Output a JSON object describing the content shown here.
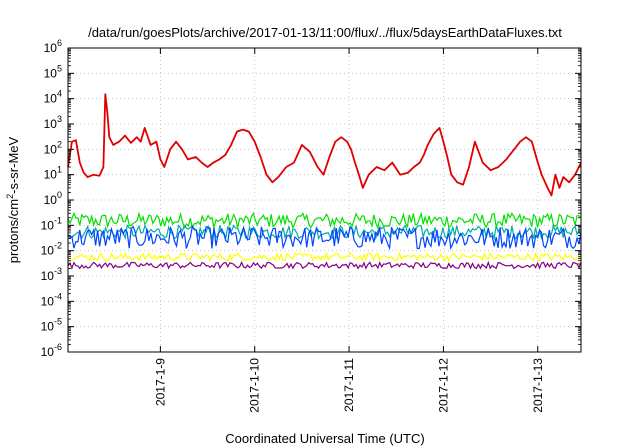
{
  "chart_data": {
    "type": "line",
    "title": "/data/run/goesPlots/archive/2017-01-13/11:00/flux/../flux/5daysEarthDataFluxes.txt",
    "xlabel": "Coordinated Universal Time (UTC)",
    "ylabel": {
      "base": "protons/cm",
      "sup": "2",
      "rest": "-s-sr-MeV"
    },
    "yscale": "log",
    "ylim": [
      1e-06,
      1000000
    ],
    "xlim": [
      "2017-01-08T00:30",
      "2017-01-13T11:00"
    ],
    "yticks": [
      {
        "value": 1e-06,
        "base": "10",
        "exp": "-6"
      },
      {
        "value": 1e-05,
        "base": "10",
        "exp": "-5"
      },
      {
        "value": 0.0001,
        "base": "10",
        "exp": "-4"
      },
      {
        "value": 0.001,
        "base": "10",
        "exp": "-3"
      },
      {
        "value": 0.01,
        "base": "10",
        "exp": "-2"
      },
      {
        "value": 0.1,
        "base": "10",
        "exp": "-1"
      },
      {
        "value": 1,
        "base": "10",
        "exp": "0"
      },
      {
        "value": 10,
        "base": "10",
        "exp": "1"
      },
      {
        "value": 100,
        "base": "10",
        "exp": "2"
      },
      {
        "value": 1000,
        "base": "10",
        "exp": "3"
      },
      {
        "value": 10000,
        "base": "10",
        "exp": "4"
      },
      {
        "value": 100000,
        "base": "10",
        "exp": "5"
      },
      {
        "value": 1000000,
        "base": "10",
        "exp": "6"
      }
    ],
    "xticks": [
      {
        "value": "2017-01-09T00:00",
        "label": "2017-1-9"
      },
      {
        "value": "2017-01-10T00:00",
        "label": "2017-1-10"
      },
      {
        "value": "2017-01-11T00:00",
        "label": "2017-1-11"
      },
      {
        "value": "2017-01-12T00:00",
        "label": "2017-1-12"
      },
      {
        "value": "2017-01-13T00:00",
        "label": "2017-1-13"
      }
    ],
    "grid": true,
    "series": [
      {
        "color": "#e00000",
        "x": [
          "2017-01-08T00:30",
          "2017-01-08T01:30",
          "2017-01-08T02:30",
          "2017-01-08T03:30",
          "2017-01-08T04:30",
          "2017-01-08T05:30",
          "2017-01-08T07:00",
          "2017-01-08T08:30",
          "2017-01-08T09:30",
          "2017-01-08T10:00",
          "2017-01-08T10:30",
          "2017-01-08T11:00",
          "2017-01-08T12:00",
          "2017-01-08T13:30",
          "2017-01-08T15:00",
          "2017-01-08T16:30",
          "2017-01-08T18:00",
          "2017-01-08T19:00",
          "2017-01-08T20:00",
          "2017-01-08T21:30",
          "2017-01-08T23:00",
          "2017-01-09T00:00",
          "2017-01-09T01:00",
          "2017-01-09T02:30",
          "2017-01-09T04:00",
          "2017-01-09T05:30",
          "2017-01-09T07:00",
          "2017-01-09T09:00",
          "2017-01-09T10:30",
          "2017-01-09T12:00",
          "2017-01-09T13:30",
          "2017-01-09T15:00",
          "2017-01-09T16:30",
          "2017-01-09T18:00",
          "2017-01-09T19:30",
          "2017-01-09T21:00",
          "2017-01-09T22:30",
          "2017-01-10T00:00",
          "2017-01-10T01:30",
          "2017-01-10T03:00",
          "2017-01-10T04:30",
          "2017-01-10T06:00",
          "2017-01-10T08:00",
          "2017-01-10T10:00",
          "2017-01-10T12:00",
          "2017-01-10T14:00",
          "2017-01-10T16:00",
          "2017-01-10T17:30",
          "2017-01-10T19:00",
          "2017-01-10T20:30",
          "2017-01-10T22:00",
          "2017-01-10T23:30",
          "2017-01-11T00:30",
          "2017-01-11T01:30",
          "2017-01-11T02:30",
          "2017-01-11T03:30",
          "2017-01-11T05:00",
          "2017-01-11T07:00",
          "2017-01-11T09:00",
          "2017-01-11T11:00",
          "2017-01-11T13:00",
          "2017-01-11T15:00",
          "2017-01-11T16:30",
          "2017-01-11T18:00",
          "2017-01-11T19:00",
          "2017-01-11T20:00",
          "2017-01-11T21:30",
          "2017-01-11T23:00",
          "2017-01-12T00:00",
          "2017-01-12T01:00",
          "2017-01-12T02:00",
          "2017-01-12T03:30",
          "2017-01-12T05:00",
          "2017-01-12T06:30",
          "2017-01-12T08:00",
          "2017-01-12T10:00",
          "2017-01-12T12:00",
          "2017-01-12T14:00",
          "2017-01-12T16:00",
          "2017-01-12T18:00",
          "2017-01-12T19:30",
          "2017-01-12T21:00",
          "2017-01-12T22:30",
          "2017-01-13T00:00",
          "2017-01-13T01:00",
          "2017-01-13T02:30",
          "2017-01-13T03:30",
          "2017-01-13T04:30",
          "2017-01-13T05:30",
          "2017-01-13T06:30",
          "2017-01-13T08:00",
          "2017-01-13T09:30",
          "2017-01-13T11:00"
        ],
        "y": [
          20,
          200,
          230,
          30,
          12,
          8,
          10,
          9,
          20,
          15000,
          3000,
          300,
          150,
          200,
          350,
          180,
          300,
          200,
          700,
          150,
          200,
          40,
          20,
          100,
          200,
          100,
          40,
          50,
          30,
          20,
          30,
          40,
          60,
          150,
          500,
          600,
          500,
          200,
          50,
          10,
          5,
          8,
          20,
          30,
          150,
          80,
          20,
          10,
          50,
          200,
          300,
          200,
          100,
          30,
          10,
          3,
          10,
          20,
          15,
          30,
          10,
          12,
          20,
          30,
          60,
          150,
          400,
          700,
          200,
          50,
          10,
          5,
          4,
          20,
          200,
          30,
          15,
          20,
          40,
          100,
          200,
          300,
          200,
          30,
          10,
          3,
          1.5,
          10,
          3,
          8,
          5,
          10,
          30
        ]
      },
      {
        "color": "#00e000",
        "band": [
          0.08,
          0.3
        ]
      },
      {
        "color": "#00aaaa",
        "band": [
          0.03,
          0.1
        ]
      },
      {
        "color": "#0044ff",
        "band": [
          0.012,
          0.09
        ]
      },
      {
        "color": "#ffff00",
        "band": [
          0.004,
          0.008
        ]
      },
      {
        "color": "#800080",
        "band": [
          0.002,
          0.0035
        ]
      }
    ]
  }
}
